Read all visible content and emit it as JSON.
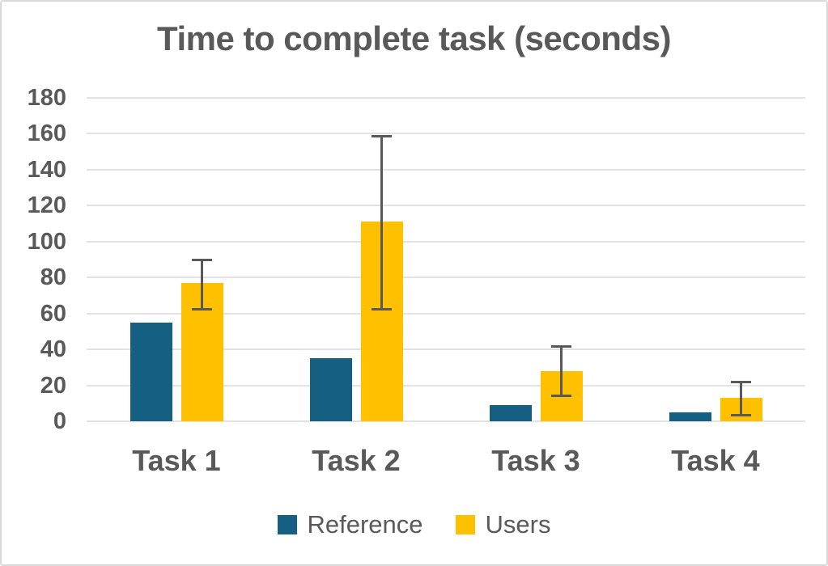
{
  "colors": {
    "background": "#FFFFFF",
    "border": "#D9D9D9",
    "gridline": "#E2E2E2",
    "text": "#595959",
    "error_bar": "#595959"
  },
  "chart_data": {
    "type": "bar",
    "title": "Time to complete task (seconds)",
    "xlabel": "",
    "ylabel": "",
    "categories": [
      "Task 1",
      "Task 2",
      "Task 3",
      "Task 4"
    ],
    "series": [
      {
        "name": "Reference",
        "color": "#156082",
        "values": [
          55,
          35,
          9,
          5
        ]
      },
      {
        "name": "Users",
        "color": "#FFC000",
        "values": [
          77,
          111,
          28,
          13
        ],
        "error_bars": [
          {
            "low": 62,
            "high": 90
          },
          {
            "low": 62,
            "high": 159
          },
          {
            "low": 14,
            "high": 42
          },
          {
            "low": 3,
            "high": 22
          }
        ]
      }
    ],
    "ylim": [
      0,
      180
    ],
    "ytick_step": 20,
    "yticks": [
      0,
      20,
      40,
      60,
      80,
      100,
      120,
      140,
      160,
      180
    ],
    "grid": true,
    "legend_position": "bottom"
  }
}
